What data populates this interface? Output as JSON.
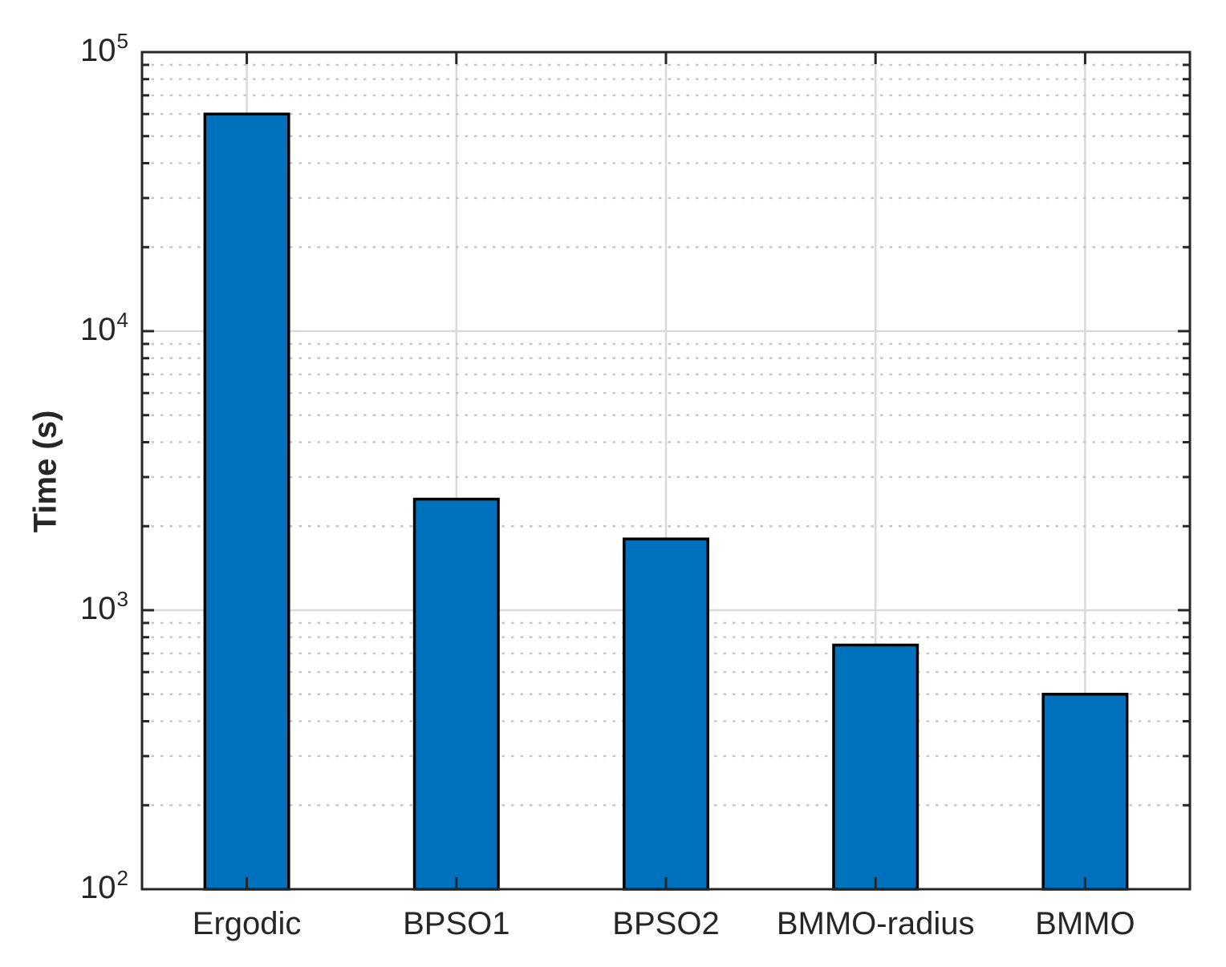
{
  "chart_data": {
    "type": "bar",
    "categories": [
      "Ergodic",
      "BPSO1",
      "BPSO2",
      "BMMO-radius",
      "BMMO"
    ],
    "values": [
      60000,
      2500,
      1800,
      750,
      500
    ],
    "title": "",
    "xlabel": "",
    "ylabel": "Time (s)",
    "yscale": "log",
    "ylim": [
      100,
      100000
    ],
    "ytick_base": "10",
    "ytick_exponents": [
      2,
      3,
      4,
      5
    ],
    "bar_width_fraction": 0.4,
    "grid": {
      "major": true,
      "minor": true,
      "minor_style": "dotted",
      "major_color": "#d9d9d9",
      "minor_color": "#c6c6c6"
    },
    "legend": null,
    "colors": {
      "bar_fill": "#0072BD",
      "bar_edge": "#000000",
      "axis": "#262626",
      "text": "#262626",
      "background": "#ffffff"
    }
  }
}
